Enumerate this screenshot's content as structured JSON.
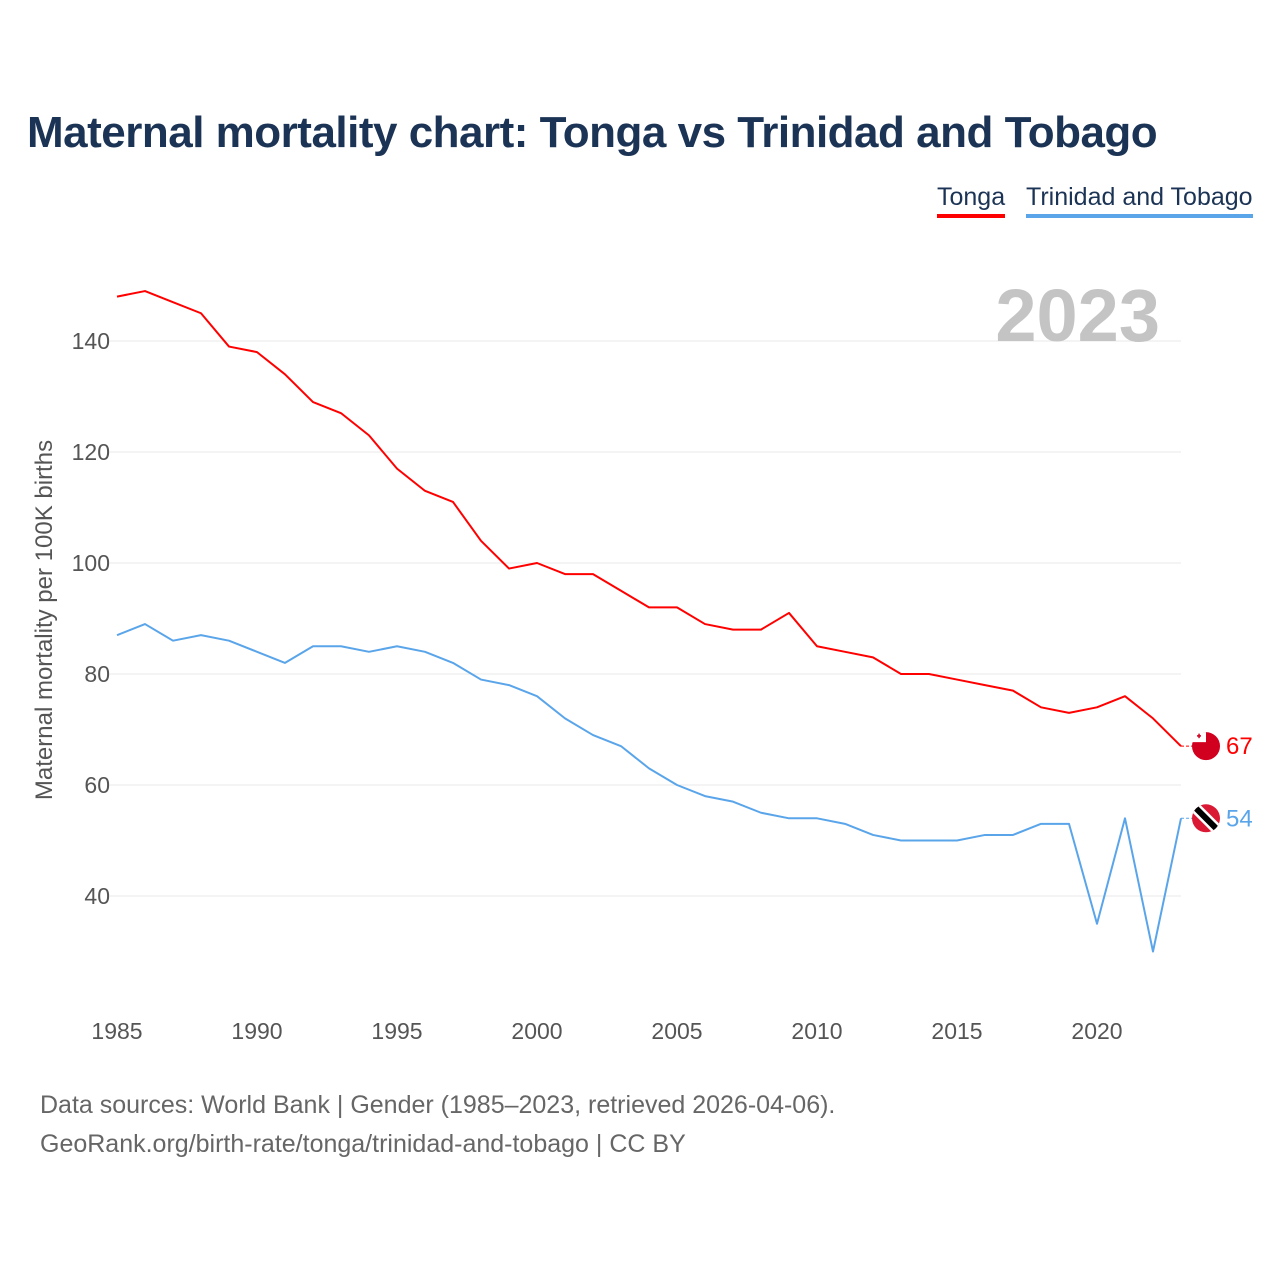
{
  "title": "Maternal mortality chart: Tonga vs Trinidad and Tobago",
  "footer": {
    "line1": "Data sources: World Bank | Gender (1985–2023, retrieved 2026-04-06).",
    "line2": "GeoRank.org/birth-rate/tonga/trinidad-and-tobago | CC BY"
  },
  "chart_data": {
    "type": "line",
    "title": "Maternal mortality chart: Tonga vs Trinidad and Tobago",
    "xlabel": "",
    "ylabel": "Maternal mortality per 100K births",
    "year_label": "2023",
    "x": [
      1985,
      1986,
      1987,
      1988,
      1989,
      1990,
      1991,
      1992,
      1993,
      1994,
      1995,
      1996,
      1997,
      1998,
      1999,
      2000,
      2001,
      2002,
      2003,
      2004,
      2005,
      2006,
      2007,
      2008,
      2009,
      2010,
      2011,
      2012,
      2013,
      2014,
      2015,
      2016,
      2017,
      2018,
      2019,
      2020,
      2021,
      2022,
      2023
    ],
    "xticks": [
      "1985",
      "1990",
      "1995",
      "2000",
      "2005",
      "2010",
      "2015",
      "2020"
    ],
    "yticks": [
      "40",
      "60",
      "80",
      "100",
      "120",
      "140"
    ],
    "ylim": [
      20,
      150
    ],
    "grid": true,
    "legend_position": "top-right",
    "series": [
      {
        "name": "Tonga",
        "color": "#ff0000",
        "end_label": "67",
        "values": [
          148,
          149,
          147,
          145,
          139,
          138,
          134,
          129,
          127,
          123,
          117,
          113,
          111,
          104,
          99,
          100,
          98,
          98,
          95,
          92,
          92,
          89,
          88,
          88,
          91,
          85,
          84,
          83,
          80,
          80,
          79,
          78,
          77,
          74,
          73,
          74,
          76,
          72,
          67
        ]
      },
      {
        "name": "Trinidad and Tobago",
        "color": "#5aa5ea",
        "end_label": "54",
        "values": [
          87,
          89,
          86,
          87,
          86,
          84,
          82,
          85,
          85,
          84,
          85,
          84,
          82,
          79,
          78,
          76,
          72,
          69,
          67,
          63,
          60,
          58,
          57,
          55,
          54,
          54,
          53,
          51,
          50,
          50,
          50,
          51,
          51,
          53,
          53,
          35,
          54,
          30,
          54
        ]
      }
    ]
  }
}
